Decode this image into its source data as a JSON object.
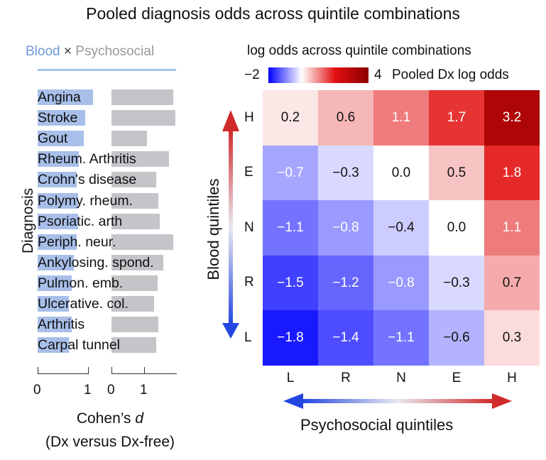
{
  "title": "Pooled diagnosis odds across quintile combinations",
  "colors": {
    "blood": "#a7bfe9",
    "psychosocial": "#c4c4c9",
    "heat_low": "#0000ff",
    "heat_mid": "#ffffff",
    "heat_high": "#8b0000"
  },
  "chart_data": [
    {
      "type": "bar",
      "legend": {
        "blood": "Blood",
        "times": "×",
        "psychosocial": "Psychosocial"
      },
      "ylabel": "Diagnosis",
      "xlabel_line1": "Cohen’s",
      "xlabel_symbol": "d",
      "xlabel_line2": "(Dx versus Dx-free)",
      "xlim": [
        0,
        1.3
      ],
      "xticks": [
        "0",
        "1"
      ],
      "categories": [
        "Angina",
        "Stroke",
        "Gout",
        "Rheum. Arthritis",
        "Crohn's disease",
        "Polymy. rheum.",
        "Psoriatic. arth",
        "Periph. neur.",
        "Ankylosing. spond.",
        "Pulmon. emb.",
        "Ulcerative. col.",
        "Arthritis",
        "Carpal tunnel"
      ],
      "series": [
        {
          "name": "Blood",
          "values": [
            1.1,
            0.95,
            0.92,
            0.82,
            0.78,
            0.8,
            0.8,
            0.78,
            0.72,
            0.68,
            0.62,
            0.68,
            0.62
          ]
        },
        {
          "name": "Psychosocial",
          "values": [
            1.05,
            1.08,
            0.6,
            0.97,
            0.76,
            0.8,
            0.82,
            1.05,
            0.88,
            0.78,
            0.72,
            0.8,
            0.76
          ]
        }
      ]
    },
    {
      "type": "heatmap",
      "colorbar_title": "log odds across quintile combinations",
      "colorbar_label": "Pooled Dx log odds",
      "colorbar_min_label": "−2",
      "colorbar_max_label": "4",
      "vmin": -2,
      "vmax": 4,
      "ylabel": "Blood quintiles",
      "xlabel": "Psychosocial quintiles",
      "rows": [
        "H",
        "E",
        "N",
        "R",
        "L"
      ],
      "cols": [
        "L",
        "R",
        "N",
        "E",
        "H"
      ],
      "values": [
        [
          0.2,
          0.6,
          1.1,
          1.7,
          3.2
        ],
        [
          -0.7,
          -0.3,
          0.0,
          0.5,
          1.8
        ],
        [
          -1.1,
          -0.8,
          -0.4,
          0.0,
          1.1
        ],
        [
          -1.5,
          -1.2,
          -0.8,
          -0.3,
          0.7
        ],
        [
          -1.8,
          -1.4,
          -1.1,
          -0.6,
          0.3
        ]
      ],
      "labels": [
        [
          "0.2",
          "0.6",
          "1.1",
          "1.7",
          "3.2"
        ],
        [
          "−0.7",
          "−0.3",
          "0.0",
          "0.5",
          "1.8"
        ],
        [
          "−1.1",
          "−0.8",
          "−0.4",
          "0.0",
          "1.1"
        ],
        [
          "−1.5",
          "−1.2",
          "−0.8",
          "−0.3",
          "0.7"
        ],
        [
          "−1.8",
          "−1.4",
          "−1.1",
          "−0.6",
          "0.3"
        ]
      ]
    }
  ]
}
